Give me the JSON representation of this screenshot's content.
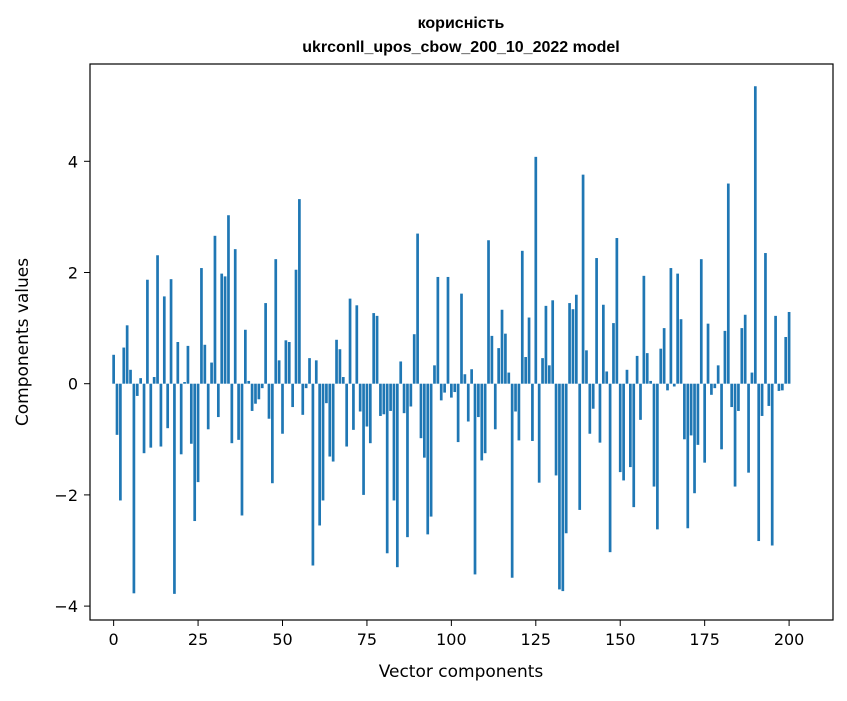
{
  "chart_data": {
    "type": "bar",
    "title": [
      "корисність",
      "ukrconll_upos_cbow_200_10_2022 model"
    ],
    "xlabel": "Vector components",
    "ylabel": "Components values",
    "xlim": [
      -7,
      213
    ],
    "ylim": [
      -4.25,
      5.75
    ],
    "xticks": [
      0,
      25,
      50,
      75,
      100,
      125,
      150,
      175,
      200
    ],
    "xtick_labels": [
      "0",
      "25",
      "50",
      "75",
      "100",
      "125",
      "150",
      "175",
      "200"
    ],
    "yticks": [
      -4,
      -2,
      0,
      2,
      4
    ],
    "ytick_labels": [
      "−4",
      "−2",
      "0",
      "2",
      "4"
    ],
    "bar_color": "#1f77b4",
    "grid": false,
    "legend": "none",
    "series": [
      {
        "values": [
          0.52,
          -0.92,
          -2.1,
          0.65,
          1.05,
          0.25,
          -3.77,
          -0.22,
          0.1,
          -1.25,
          1.87,
          -1.15,
          0.12,
          2.31,
          -1.13,
          1.57,
          -0.8,
          1.88,
          -3.78,
          0.75,
          -1.27,
          0.03,
          0.68,
          -1.08,
          -2.47,
          -1.77,
          2.08,
          0.7,
          -0.82,
          0.38,
          2.66,
          -0.6,
          1.98,
          1.93,
          3.03,
          -1.07,
          2.42,
          -1.01,
          -2.37,
          0.97,
          0.05,
          -0.49,
          -0.36,
          -0.28,
          -0.08,
          1.45,
          -0.63,
          -1.79,
          2.24,
          0.42,
          -0.9,
          0.78,
          0.75,
          -0.42,
          2.05,
          3.32,
          -0.56,
          -0.08,
          0.46,
          -3.27,
          0.42,
          -2.55,
          -2.1,
          -0.35,
          -1.31,
          -1.4,
          0.79,
          0.62,
          0.12,
          -1.13,
          1.53,
          -0.83,
          1.41,
          -0.5,
          -2.0,
          -0.77,
          -1.07,
          1.27,
          1.22,
          -0.58,
          -0.55,
          -3.05,
          -0.49,
          -2.1,
          -3.3,
          0.4,
          -0.53,
          -2.76,
          -0.41,
          0.89,
          2.7,
          -0.98,
          -1.33,
          -2.71,
          -2.39,
          0.33,
          1.92,
          -0.3,
          -0.16,
          1.92,
          -0.25,
          -0.15,
          -1.05,
          1.62,
          0.17,
          -0.68,
          0.26,
          -3.43,
          -0.6,
          -1.38,
          -1.25,
          2.58,
          0.86,
          -0.82,
          0.64,
          1.33,
          0.9,
          0.2,
          -3.49,
          -0.5,
          -1.02,
          2.39,
          0.48,
          1.19,
          -1.03,
          4.08,
          -1.78,
          0.46,
          1.4,
          0.33,
          1.5,
          -1.65,
          -3.7,
          -3.73,
          -2.69,
          1.45,
          1.34,
          1.6,
          -2.27,
          3.76,
          0.6,
          -0.9,
          -0.45,
          2.26,
          -1.06,
          1.42,
          0.22,
          -3.03,
          1.09,
          2.62,
          -1.59,
          -1.74,
          0.25,
          -1.5,
          -2.22,
          0.5,
          -0.65,
          1.94,
          0.55,
          0.05,
          -1.85,
          -2.62,
          0.63,
          1.0,
          -0.12,
          2.08,
          -0.05,
          1.98,
          1.16,
          -1.0,
          -2.6,
          -0.93,
          -1.97,
          -1.1,
          2.24,
          -1.42,
          1.08,
          -0.2,
          -0.08,
          0.33,
          -1.18,
          0.95,
          3.6,
          -0.42,
          -1.85,
          -0.49,
          1.0,
          1.24,
          -1.6,
          0.2,
          5.35,
          -2.83,
          -0.58,
          2.35,
          -0.4,
          -2.91,
          1.22,
          -0.13,
          -0.12,
          0.84,
          1.29
        ]
      }
    ]
  }
}
